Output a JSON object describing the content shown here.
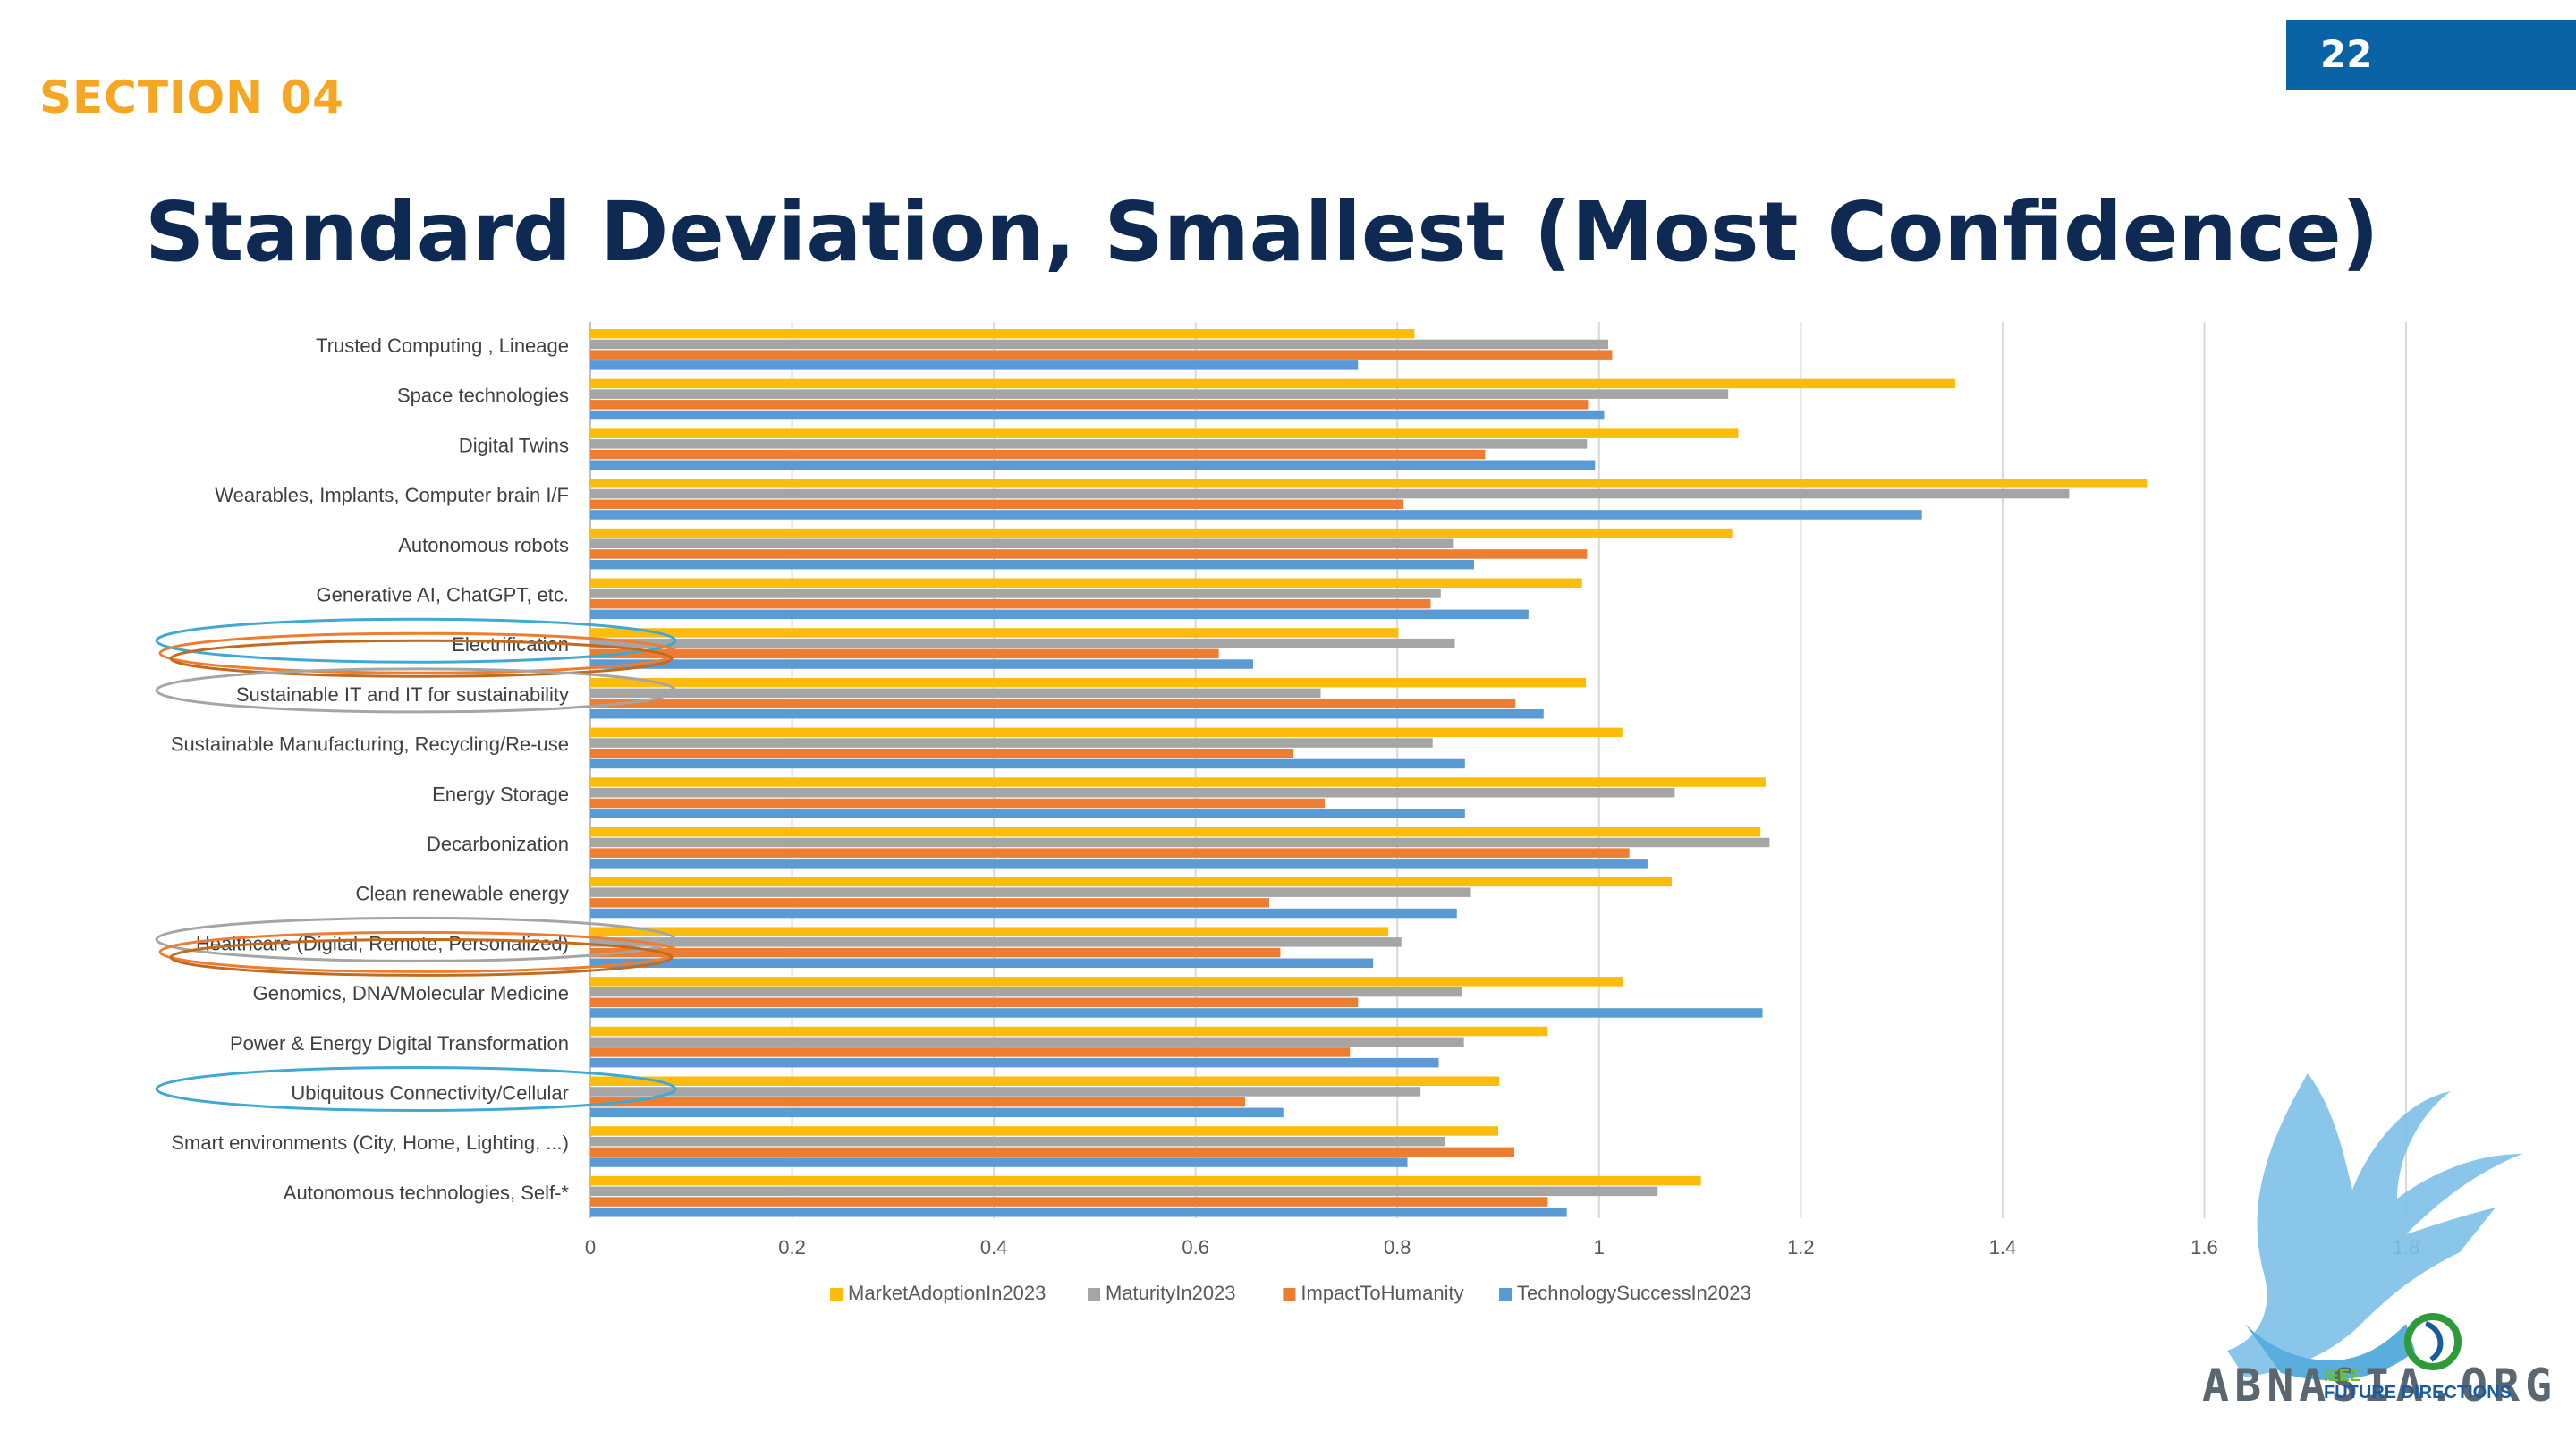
{
  "header": {
    "section": "SECTION 04",
    "page_number": "22",
    "title": "Standard Deviation, Smallest (Most Confidence)"
  },
  "chart_data": {
    "type": "bar",
    "orientation": "horizontal",
    "categories": [
      "Trusted Computing , Lineage",
      "Space technologies",
      "Digital Twins",
      "Wearables,  Implants, Computer brain I/F",
      "Autonomous robots",
      "Generative AI, ChatGPT, etc.",
      "Electrification",
      "Sustainable IT and IT for sustainability",
      "Sustainable Manufacturing, Recycling/Re-use",
      "Energy Storage",
      "Decarbonization",
      "Clean renewable energy",
      "Healthcare (Digital, Remote, Personalized)",
      "Genomics, DNA/Molecular Medicine",
      "Power & Energy Digital Transformation",
      "Ubiquitous Connectivity/Cellular",
      "Smart environments (City, Home, Lighting, ...)",
      "Autonomous technologies, Self-*"
    ],
    "series": [
      {
        "name": "MarketAdoptionIn2023",
        "color": "#fcbc0c",
        "values": [
          0.817,
          1.353,
          1.138,
          1.543,
          1.132,
          0.983,
          0.801,
          0.987,
          1.023,
          1.165,
          1.16,
          1.072,
          0.791,
          1.024,
          0.949,
          0.901,
          0.9,
          1.101
        ]
      },
      {
        "name": "MaturityIn2023",
        "color": "#a5a5a5",
        "values": [
          1.009,
          1.128,
          0.988,
          1.466,
          0.856,
          0.843,
          0.857,
          0.724,
          0.835,
          1.075,
          1.169,
          0.873,
          0.804,
          0.864,
          0.866,
          0.823,
          0.847,
          1.058
        ]
      },
      {
        "name": "ImpactToHumanity",
        "color": "#ed7d31",
        "values": [
          1.013,
          0.989,
          0.887,
          0.806,
          0.988,
          0.833,
          0.623,
          0.917,
          0.697,
          0.728,
          1.03,
          0.673,
          0.684,
          0.761,
          0.753,
          0.649,
          0.916,
          0.949
        ]
      },
      {
        "name": "TechnologySuccessIn2023",
        "color": "#5b9bd5",
        "values": [
          0.761,
          1.005,
          0.996,
          1.32,
          0.876,
          0.93,
          0.657,
          0.945,
          0.867,
          0.867,
          1.048,
          0.859,
          0.776,
          1.162,
          0.841,
          0.687,
          0.81,
          0.968
        ]
      }
    ],
    "xlim": [
      0,
      1.8
    ],
    "x_ticks": [
      "0",
      "0.2",
      "0.4",
      "0.6",
      "0.8",
      "1",
      "1.2",
      "1.4",
      "1.6",
      "1.8"
    ],
    "grid": "vertical",
    "legend": "bottom",
    "highlights": [
      {
        "category": "Electrification",
        "rings": [
          "#3fa9d6",
          "#ed7d31",
          "#c26b1c"
        ]
      },
      {
        "category": "Sustainable IT and IT for sustainability",
        "rings": [
          "#a5a5a5"
        ]
      },
      {
        "category": "Healthcare (Digital, Remote, Personalized)",
        "rings": [
          "#a5a5a5",
          "#ed7d31",
          "#c26b1c"
        ]
      },
      {
        "category": "Ubiquitous Connectivity/Cellular",
        "rings": [
          "#3fa9d6"
        ]
      }
    ]
  },
  "logo": {
    "text": "ABNASIA.ORG",
    "ieee": "IEEE",
    "future": "FUTURE DIRECTIONS"
  }
}
